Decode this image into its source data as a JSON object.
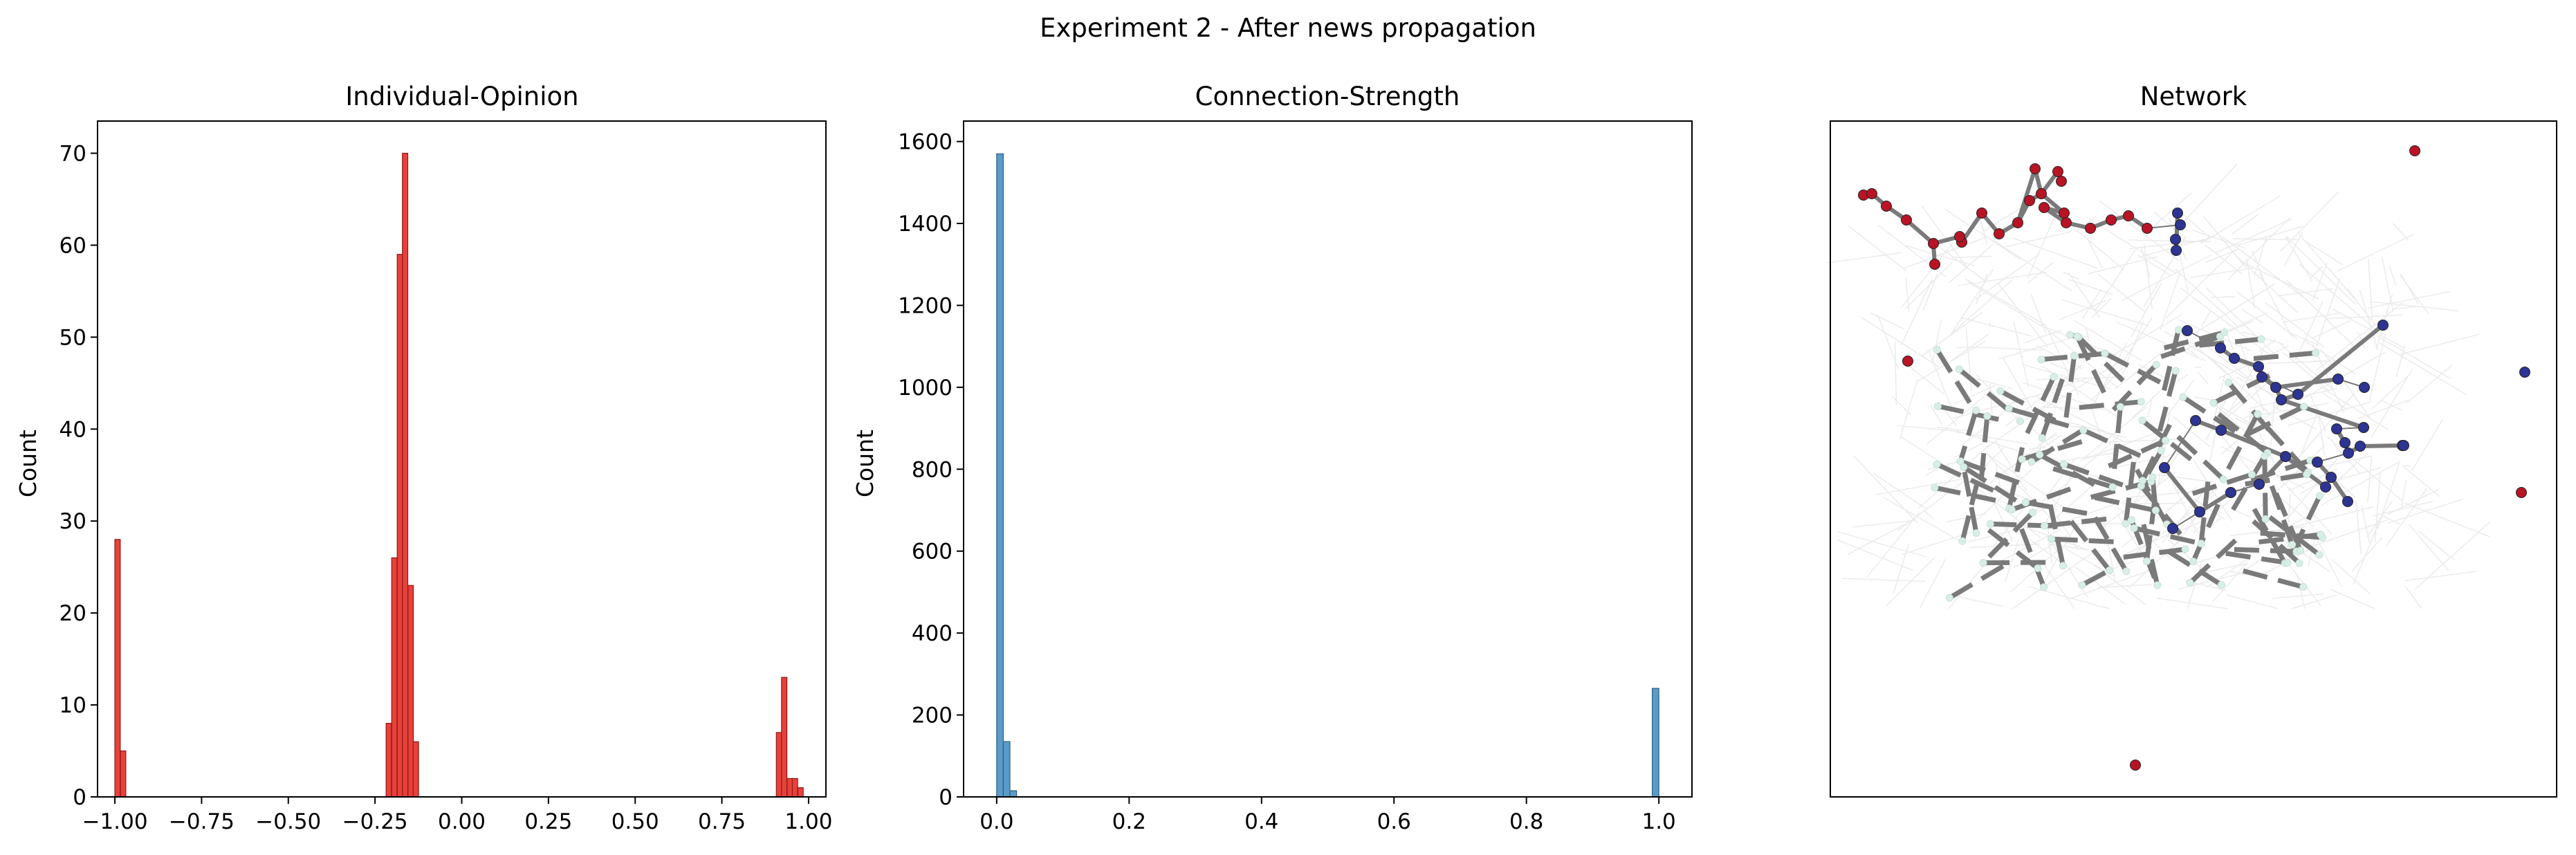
{
  "figure": {
    "suptitle": "Experiment 2 - After news propagation"
  },
  "chart_data": [
    {
      "type": "histogram",
      "title": "Individual-Opinion",
      "xlabel": "",
      "ylabel": "Count",
      "xlim": [
        -1.05,
        1.05
      ],
      "ylim": [
        0,
        73.5
      ],
      "xticks": [
        -1.0,
        -0.75,
        -0.5,
        -0.25,
        0.0,
        0.25,
        0.5,
        0.75,
        1.0
      ],
      "xtick_labels": [
        "−1.00",
        "−0.75",
        "−0.50",
        "−0.25",
        "0.00",
        "0.25",
        "0.50",
        "0.75",
        "1.00"
      ],
      "yticks": [
        0,
        10,
        20,
        30,
        40,
        50,
        60,
        70
      ],
      "ytick_labels": [
        "0",
        "10",
        "20",
        "30",
        "40",
        "50",
        "60",
        "70"
      ],
      "bin_width": 0.0155,
      "bars": [
        {
          "x": -1.0,
          "count": 28
        },
        {
          "x": -0.984,
          "count": 5
        },
        {
          "x": -0.218,
          "count": 8
        },
        {
          "x": -0.202,
          "count": 26
        },
        {
          "x": -0.186,
          "count": 59
        },
        {
          "x": -0.171,
          "count": 70
        },
        {
          "x": -0.155,
          "count": 23
        },
        {
          "x": -0.14,
          "count": 6
        },
        {
          "x": 0.907,
          "count": 7
        },
        {
          "x": 0.922,
          "count": 13
        },
        {
          "x": 0.938,
          "count": 2
        },
        {
          "x": 0.953,
          "count": 2
        },
        {
          "x": 0.969,
          "count": 1
        }
      ],
      "bar_color": "#e8413b",
      "edge_color": "#8b1a14",
      "grid": false
    },
    {
      "type": "histogram",
      "title": "Connection-Strength",
      "xlabel": "",
      "ylabel": "Count",
      "xlim": [
        -0.05,
        1.05
      ],
      "ylim": [
        0,
        1650
      ],
      "xticks": [
        0.0,
        0.2,
        0.4,
        0.6,
        0.8,
        1.0
      ],
      "xtick_labels": [
        "0.0",
        "0.2",
        "0.4",
        "0.6",
        "0.8",
        "1.0"
      ],
      "yticks": [
        0,
        200,
        400,
        600,
        800,
        1000,
        1200,
        1400,
        1600
      ],
      "ytick_labels": [
        "0",
        "200",
        "400",
        "600",
        "800",
        "1000",
        "1200",
        "1400",
        "1600"
      ],
      "bin_width": 0.01,
      "bars": [
        {
          "x": 0.0,
          "count": 1570
        },
        {
          "x": 0.01,
          "count": 135
        },
        {
          "x": 0.02,
          "count": 15
        },
        {
          "x": 0.99,
          "count": 265
        }
      ],
      "bar_color": "#5a9bc8",
      "edge_color": "#2f5f82",
      "grid": false
    },
    {
      "type": "network",
      "title": "Network",
      "node_color_groups": [
        {
          "name": "red",
          "color": "#b81426"
        },
        {
          "name": "blue",
          "color": "#2e3491"
        },
        {
          "name": "neutral",
          "color": "#d8efe6"
        }
      ],
      "edge_color": "#7a7a7a"
    }
  ]
}
